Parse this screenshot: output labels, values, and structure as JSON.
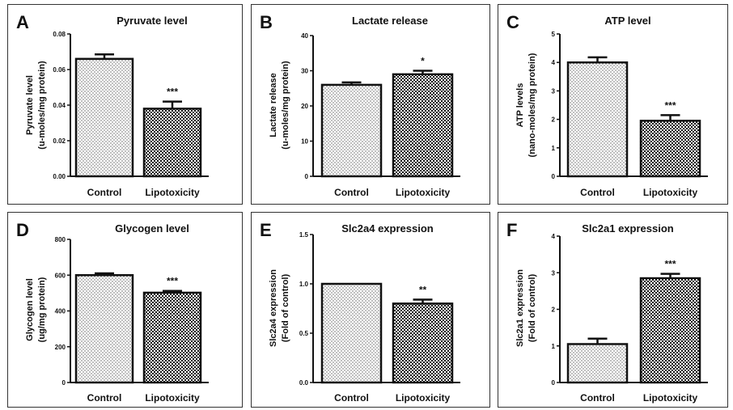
{
  "chart_data": [
    {
      "type": "bar",
      "panel_label": "A",
      "title": "Pyruvate level",
      "ylabel_lines": [
        "Pyruvate level",
        "(u-moles/mg protein)"
      ],
      "ylim": [
        0,
        0.08
      ],
      "yticks": [
        "0.00",
        "0.02",
        "0.04",
        "0.06",
        "0.08"
      ],
      "categories": [
        "Control",
        "Lipotoxicity"
      ],
      "values": [
        0.066,
        0.038
      ],
      "errors": [
        0.0025,
        0.004
      ],
      "annotations": [
        "",
        "***"
      ]
    },
    {
      "type": "bar",
      "panel_label": "B",
      "title": "Lactate release",
      "ylabel_lines": [
        "Lactate release",
        "(u-moles/mg protein)"
      ],
      "ylim": [
        0,
        40
      ],
      "yticks": [
        "0",
        "10",
        "20",
        "30",
        "40"
      ],
      "categories": [
        "Control",
        "Lipotoxicity"
      ],
      "values": [
        26,
        29
      ],
      "errors": [
        0.7,
        1.0
      ],
      "annotations": [
        "",
        "*"
      ]
    },
    {
      "type": "bar",
      "panel_label": "C",
      "title": "ATP level",
      "ylabel_lines": [
        "ATP levels",
        "(nano-moles/mg protein)"
      ],
      "ylim": [
        0,
        5
      ],
      "yticks": [
        "0",
        "1",
        "2",
        "3",
        "4",
        "5"
      ],
      "categories": [
        "Control",
        "Lipotoxicity"
      ],
      "values": [
        4.0,
        1.95
      ],
      "errors": [
        0.18,
        0.2
      ],
      "annotations": [
        "",
        "***"
      ]
    },
    {
      "type": "bar",
      "panel_label": "D",
      "title": "Glycogen level",
      "ylabel_lines": [
        "Glycogen level",
        "(ug/mg protein)"
      ],
      "ylim": [
        0,
        800
      ],
      "yticks": [
        "0",
        "200",
        "400",
        "600",
        "800"
      ],
      "categories": [
        "Control",
        "Lipotoxicity"
      ],
      "values": [
        600,
        502
      ],
      "errors": [
        10,
        10
      ],
      "annotations": [
        "",
        "***"
      ]
    },
    {
      "type": "bar",
      "panel_label": "E",
      "title": "Slc2a4 expression",
      "ylabel_lines": [
        "Slc2a4 expression",
        "(Fold of control)"
      ],
      "ylim": [
        0,
        1.5
      ],
      "yticks": [
        "0.0",
        "0.5",
        "1.0",
        "1.5"
      ],
      "categories": [
        "Control",
        "Lipotoxicity"
      ],
      "values": [
        1.0,
        0.8
      ],
      "errors": [
        0,
        0.04
      ],
      "annotations": [
        "",
        "**"
      ]
    },
    {
      "type": "bar",
      "panel_label": "F",
      "title": "Slc2a1 expression",
      "ylabel_lines": [
        "Slc2a1 expression",
        "(Fold of control)"
      ],
      "ylim": [
        0,
        4
      ],
      "yticks": [
        "0",
        "1",
        "2",
        "3",
        "4"
      ],
      "categories": [
        "Control",
        "Lipotoxicity"
      ],
      "values": [
        1.05,
        2.85
      ],
      "errors": [
        0.15,
        0.12
      ],
      "annotations": [
        "",
        "***"
      ]
    }
  ]
}
